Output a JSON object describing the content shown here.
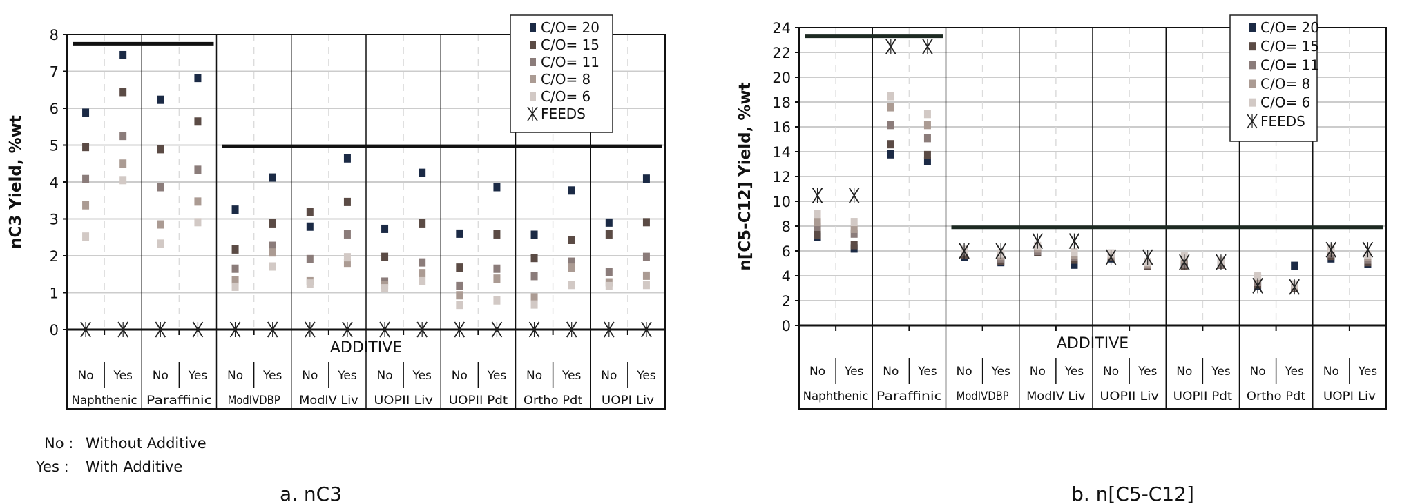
{
  "legend": {
    "series": [
      "C/O= 20",
      "C/O= 15",
      "C/O= 11",
      "C/O= 8",
      "C/O= 6"
    ],
    "feeds": "FEEDS"
  },
  "colors": {
    "C/O= 20": "#1b2a45",
    "C/O= 15": "#5b4b45",
    "C/O= 11": "#8b7c7a",
    "C/O= 8": "#ab9b93",
    "C/O= 6": "#d2c9c5",
    "feeds": "#222222",
    "axis": "#111111",
    "grid": "#cccccc"
  },
  "notes": [
    {
      "key": "No :",
      "text": "Without Additive"
    },
    {
      "key": "Yes :",
      "text": "With Additive"
    }
  ],
  "chart_data": [
    {
      "type": "scatter",
      "caption": "a. nC3",
      "ylabel": "nC3 Yield, %wt",
      "xlabel": "ADDITIVE",
      "ylim": [
        0,
        8
      ],
      "yticks": [
        0,
        1,
        2,
        3,
        4,
        5,
        6,
        7,
        8
      ],
      "categories": [
        "No",
        "Yes",
        "No",
        "Yes",
        "No",
        "Yes",
        "No",
        "Yes",
        "No",
        "Yes",
        "No",
        "Yes",
        "No",
        "Yes",
        "No",
        "Yes"
      ],
      "groups": [
        "Naphthenic",
        "Paraffinic",
        "ModIVDBP",
        "ModIV Liv",
        "UOPII Liv",
        "UOPII Pdt",
        "Ortho Pdt",
        "UOPI Liv"
      ],
      "series": [
        {
          "name": "C/O= 20",
          "values": [
            5.88,
            7.44,
            6.23,
            6.82,
            3.25,
            4.12,
            2.79,
            4.64,
            2.73,
            4.25,
            2.6,
            3.86,
            2.57,
            3.77,
            2.9,
            4.09
          ]
        },
        {
          "name": "C/O= 15",
          "values": [
            4.95,
            6.44,
            4.89,
            5.64,
            2.17,
            2.88,
            3.18,
            3.46,
            1.97,
            2.88,
            1.68,
            2.58,
            1.94,
            2.43,
            2.58,
            2.91
          ]
        },
        {
          "name": "C/O= 11",
          "values": [
            4.08,
            5.25,
            3.86,
            4.33,
            1.65,
            2.27,
            1.91,
            2.58,
            1.3,
            1.82,
            1.18,
            1.65,
            1.45,
            1.84,
            1.56,
            1.97
          ]
        },
        {
          "name": "C/O= 8",
          "values": [
            3.37,
            4.5,
            2.85,
            3.47,
            1.34,
            2.09,
            1.31,
            1.81,
            1.21,
            1.53,
            0.93,
            1.38,
            0.87,
            1.68,
            1.28,
            1.46
          ]
        },
        {
          "name": "C/O= 6",
          "values": [
            2.52,
            4.05,
            2.33,
            2.91,
            1.16,
            1.71,
            1.25,
            1.96,
            1.12,
            1.31,
            0.67,
            0.79,
            0.68,
            1.21,
            1.18,
            1.21
          ]
        },
        {
          "name": "FEEDS",
          "values": [
            0,
            0,
            0,
            0,
            0,
            0,
            0,
            0,
            0,
            0,
            0,
            0,
            0,
            0,
            0,
            0
          ]
        }
      ],
      "reference_lines": [
        {
          "value": 7.75,
          "from_col": 1,
          "to_col": 4
        },
        {
          "value": 4.97,
          "from_col": 5,
          "to_col": 16
        }
      ]
    },
    {
      "type": "scatter",
      "caption": "b. n[C5-C12]",
      "ylabel": "n[C5-C12] Yield, %wt",
      "xlabel": "ADDITIVE",
      "ylim": [
        0,
        24
      ],
      "yticks": [
        0,
        2,
        4,
        6,
        8,
        10,
        12,
        14,
        16,
        18,
        20,
        22,
        24
      ],
      "categories": [
        "No",
        "Yes",
        "No",
        "Yes",
        "No",
        "Yes",
        "No",
        "Yes",
        "No",
        "Yes",
        "No",
        "Yes",
        "No",
        "Yes",
        "No",
        "Yes"
      ],
      "groups": [
        "Naphthenic",
        "Paraffinic",
        "ModIVDBP",
        "ModIV Liv",
        "UOPII Liv",
        "UOPII Pdt",
        "Ortho Pdt",
        "UOPI Liv"
      ],
      "series": [
        {
          "name": "C/O= 20",
          "values": [
            7.13,
            6.2,
            13.79,
            13.23,
            5.5,
            5.1,
            5.9,
            4.9,
            5.4,
            4.9,
            4.9,
            5.0,
            3.2,
            4.8,
            5.4,
            5.0
          ]
        },
        {
          "name": "C/O= 15",
          "values": [
            7.3,
            6.47,
            14.6,
            13.73,
            5.7,
            5.2,
            5.9,
            5.3,
            5.5,
            4.8,
            4.8,
            4.9,
            3.3,
            3.0,
            5.6,
            5.1
          ]
        },
        {
          "name": "C/O= 11",
          "values": [
            7.96,
            7.4,
            16.15,
            15.09,
            5.9,
            5.4,
            6.0,
            5.5,
            5.6,
            4.9,
            5.0,
            5.0,
            3.5,
            3.1,
            5.8,
            5.3
          ]
        },
        {
          "name": "C/O= 8",
          "values": [
            8.33,
            7.78,
            17.58,
            16.15,
            6.0,
            5.6,
            6.2,
            5.7,
            5.7,
            5.0,
            5.3,
            5.1,
            3.8,
            3.2,
            6.0,
            5.5
          ]
        },
        {
          "name": "C/O= 6",
          "values": [
            8.99,
            8.33,
            18.47,
            17.04,
            6.1,
            5.8,
            6.4,
            5.9,
            5.8,
            5.1,
            5.6,
            5.2,
            4.0,
            3.3,
            6.2,
            5.7
          ]
        },
        {
          "name": "FEEDS",
          "values": [
            10.47,
            10.47,
            22.47,
            22.47,
            6.0,
            6.0,
            6.8,
            6.8,
            5.5,
            5.5,
            5.1,
            5.1,
            3.2,
            3.1,
            6.1,
            6.1
          ]
        }
      ],
      "reference_lines": [
        {
          "value": 23.3,
          "from_col": 1,
          "to_col": 4
        },
        {
          "value": 7.9,
          "from_col": 5,
          "to_col": 16
        }
      ]
    }
  ]
}
